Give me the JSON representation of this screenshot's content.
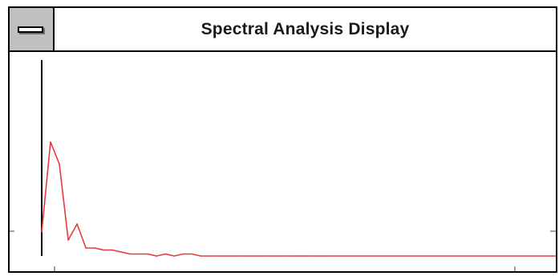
{
  "window": {
    "title": "Spectral Analysis Display"
  },
  "icons": {
    "system_menu": "system-menu-icon"
  },
  "colors": {
    "trace": "#e83a3a",
    "frame": "#000000",
    "system_menu_bg": "#c0c0c0"
  },
  "chart_data": {
    "type": "line",
    "title": "",
    "xlabel": "",
    "ylabel": "",
    "grid": false,
    "x": [
      0,
      1,
      2,
      3,
      4,
      5,
      6,
      7,
      8,
      9,
      10,
      11,
      12,
      13,
      14,
      15,
      16,
      17,
      18,
      19,
      20,
      21,
      22,
      23,
      24,
      25,
      26,
      27,
      28,
      29,
      30,
      31,
      32
    ],
    "series": [
      {
        "values": [
          0.12,
          0.57,
          0.46,
          0.08,
          0.16,
          0.04,
          0.04,
          0.03,
          0.03,
          0.02,
          0.01,
          0.01,
          0.01,
          0.0,
          0.01,
          0.0,
          0.01,
          0.01,
          0.0,
          0.0,
          0.0,
          0.0,
          0.0,
          0.0,
          0.0,
          0.0,
          0.0,
          0.0,
          0.0,
          0.0,
          0.0,
          0.0,
          0.0
        ]
      }
    ]
  }
}
